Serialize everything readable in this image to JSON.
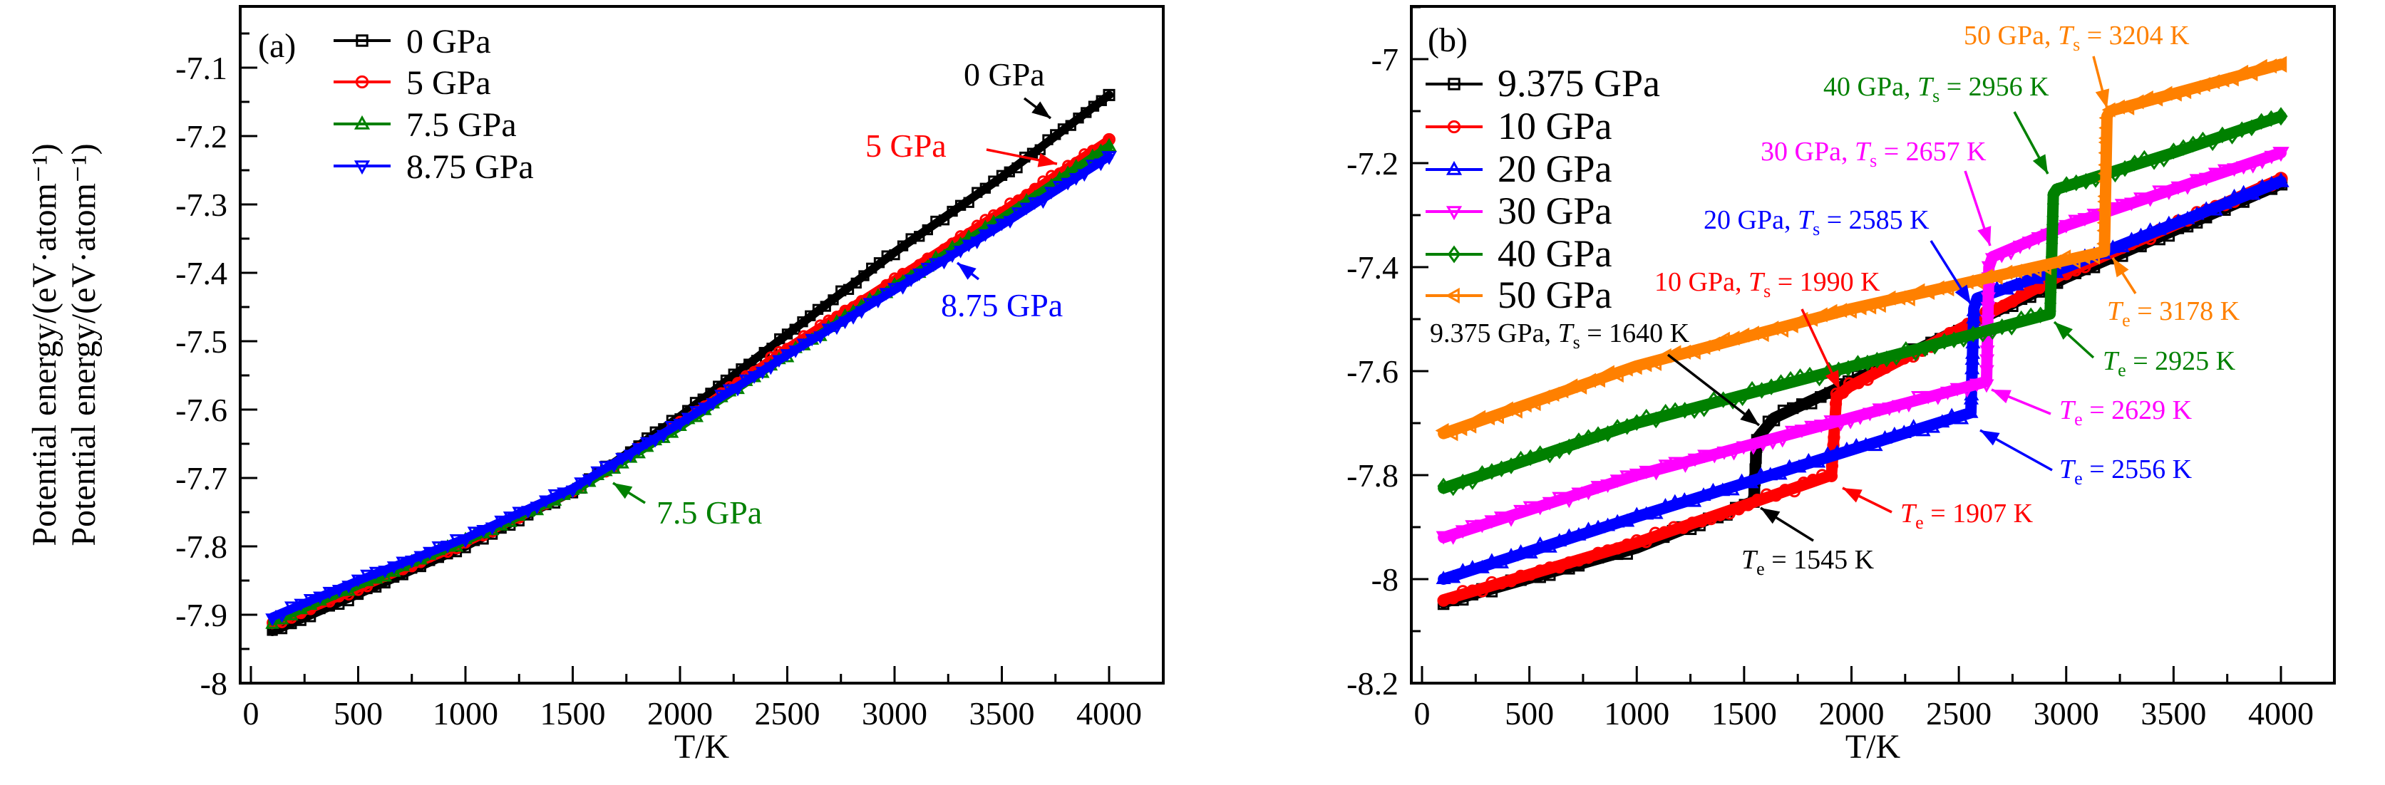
{
  "chart_data": [
    {
      "type": "line",
      "panel_label": "(a)",
      "xlabel": "T/K",
      "ylabel": "Potential energy/(eV·atom⁻¹)",
      "xlim": [
        0,
        4000
      ],
      "ylim": [
        -8.0,
        -7.017
      ],
      "x_ticks": [
        0,
        500,
        1000,
        1500,
        2000,
        2500,
        3000,
        3500,
        4000
      ],
      "y_ticks": [
        -8.0,
        -7.9,
        -7.8,
        -7.7,
        -7.6,
        -7.5,
        -7.4,
        -7.3,
        -7.2,
        -7.1
      ],
      "grid": false,
      "legend_position": "top-left",
      "series": [
        {
          "name": "0 GPa",
          "color": "#000000",
          "marker": "square",
          "x": [
            100,
            500,
            1000,
            1500,
            2000,
            2500,
            3000,
            3500,
            4000
          ],
          "y": [
            -7.925,
            -7.87,
            -7.8,
            -7.72,
            -7.61,
            -7.49,
            -7.37,
            -7.26,
            -7.14
          ]
        },
        {
          "name": "5 GPa",
          "color": "#ff0000",
          "marker": "circle",
          "x": [
            100,
            500,
            1000,
            1500,
            2000,
            2500,
            3000,
            3500,
            4000
          ],
          "y": [
            -7.915,
            -7.862,
            -7.795,
            -7.72,
            -7.62,
            -7.51,
            -7.41,
            -7.31,
            -7.205
          ]
        },
        {
          "name": "7.5 GPa",
          "color": "#008000",
          "marker": "triangle-up",
          "x": [
            100,
            500,
            1000,
            1500,
            2000,
            2500,
            3000,
            3500,
            4000
          ],
          "y": [
            -7.91,
            -7.857,
            -7.792,
            -7.72,
            -7.625,
            -7.52,
            -7.42,
            -7.32,
            -7.215
          ]
        },
        {
          "name": "8.75 GPa",
          "color": "#0000ff",
          "marker": "triangle-down",
          "x": [
            100,
            500,
            1000,
            1500,
            2000,
            2500,
            3000,
            3500,
            4000
          ],
          "y": [
            -7.903,
            -7.85,
            -7.788,
            -7.715,
            -7.62,
            -7.52,
            -7.425,
            -7.33,
            -7.23
          ]
        }
      ],
      "annotations": [
        {
          "text": "0 GPa",
          "color": "#000000",
          "points_to_T": 3800
        },
        {
          "text": "5 GPa",
          "color": "#ff0000",
          "points_to_T": 3780
        },
        {
          "text": "8.75 GPa",
          "color": "#0000ff",
          "points_to_T": 3400
        },
        {
          "text": "7.5 GPa",
          "color": "#008000",
          "points_to_T": 1700
        }
      ]
    },
    {
      "type": "line",
      "panel_label": "(b)",
      "xlabel": "T/K",
      "ylabel": "Potential energy/(eV·atom⁻¹)",
      "xlim": [
        0,
        4000
      ],
      "ylim": [
        -8.2,
        -6.9
      ],
      "x_ticks": [
        0,
        500,
        1000,
        1500,
        2000,
        2500,
        3000,
        3500,
        4000
      ],
      "y_ticks": [
        -8.2,
        -8.0,
        -7.8,
        -7.6,
        -7.4,
        -7.2,
        -7.0
      ],
      "grid": false,
      "legend_position": "top-left",
      "series": [
        {
          "name": "9.375 GPa",
          "color": "#000000",
          "marker": "square",
          "x": [
            100,
            1000,
            1545,
            1560,
            1640,
            1900,
            2500,
            3000,
            4000
          ],
          "y": [
            -8.045,
            -7.94,
            -7.85,
            -7.73,
            -7.69,
            -7.64,
            -7.52,
            -7.42,
            -7.24
          ]
        },
        {
          "name": "10 GPa",
          "color": "#ff0000",
          "marker": "circle",
          "x": [
            100,
            1000,
            1907,
            1930,
            1990,
            2500,
            3000,
            4000
          ],
          "y": [
            -8.04,
            -7.93,
            -7.8,
            -7.65,
            -7.63,
            -7.52,
            -7.41,
            -7.23
          ]
        },
        {
          "name": "20 GPa",
          "color": "#0000ff",
          "marker": "triangle-up",
          "x": [
            100,
            1000,
            2556,
            2570,
            2585,
            3000,
            4000
          ],
          "y": [
            -8.0,
            -7.88,
            -7.68,
            -7.48,
            -7.46,
            -7.4,
            -7.235
          ]
        },
        {
          "name": "30 GPa",
          "color": "#ff00ff",
          "marker": "triangle-down",
          "x": [
            100,
            1000,
            2629,
            2640,
            2657,
            3000,
            4000
          ],
          "y": [
            -7.92,
            -7.8,
            -7.62,
            -7.4,
            -7.38,
            -7.32,
            -7.18
          ]
        },
        {
          "name": "40 GPa",
          "color": "#008000",
          "marker": "diamond",
          "x": [
            100,
            1000,
            2925,
            2940,
            2956,
            3500,
            4000
          ],
          "y": [
            -7.825,
            -7.7,
            -7.49,
            -7.26,
            -7.25,
            -7.18,
            -7.11
          ]
        },
        {
          "name": "50 GPa",
          "color": "#ff8000",
          "marker": "triangle-left",
          "x": [
            100,
            1000,
            2000,
            3178,
            3190,
            3204,
            4000
          ],
          "y": [
            -7.72,
            -7.59,
            -7.48,
            -7.37,
            -7.11,
            -7.1,
            -7.01
          ]
        }
      ],
      "annotations": [
        {
          "pre": "50 GPa, ",
          "sym": "T",
          "sub": "s",
          "post": " = 3204 K",
          "color": "#ff8000"
        },
        {
          "pre": "40 GPa, ",
          "sym": "T",
          "sub": "s",
          "post": " = 2956 K",
          "color": "#008000"
        },
        {
          "pre": "30 GPa, ",
          "sym": "T",
          "sub": "s",
          "post": " = 2657 K",
          "color": "#ff00ff"
        },
        {
          "pre": "20 GPa, ",
          "sym": "T",
          "sub": "s",
          "post": " = 2585 K",
          "color": "#0000ff"
        },
        {
          "pre": "10 GPa, ",
          "sym": "T",
          "sub": "s",
          "post": " = 1990 K",
          "color": "#ff0000"
        },
        {
          "pre": "9.375 GPa, ",
          "sym": "T",
          "sub": "s",
          "post": " = 1640 K",
          "color": "#000000"
        },
        {
          "pre": "",
          "sym": "T",
          "sub": "e",
          "post": " = 3178 K",
          "color": "#ff8000"
        },
        {
          "pre": "",
          "sym": "T",
          "sub": "e",
          "post": " = 2925 K",
          "color": "#008000"
        },
        {
          "pre": "",
          "sym": "T",
          "sub": "e",
          "post": " = 2629 K",
          "color": "#ff00ff"
        },
        {
          "pre": "",
          "sym": "T",
          "sub": "e",
          "post": " = 2556 K",
          "color": "#0000ff"
        },
        {
          "pre": "",
          "sym": "T",
          "sub": "e",
          "post": " = 1907 K",
          "color": "#ff0000"
        },
        {
          "pre": "",
          "sym": "T",
          "sub": "e",
          "post": " = 1545 K",
          "color": "#000000"
        }
      ]
    }
  ]
}
